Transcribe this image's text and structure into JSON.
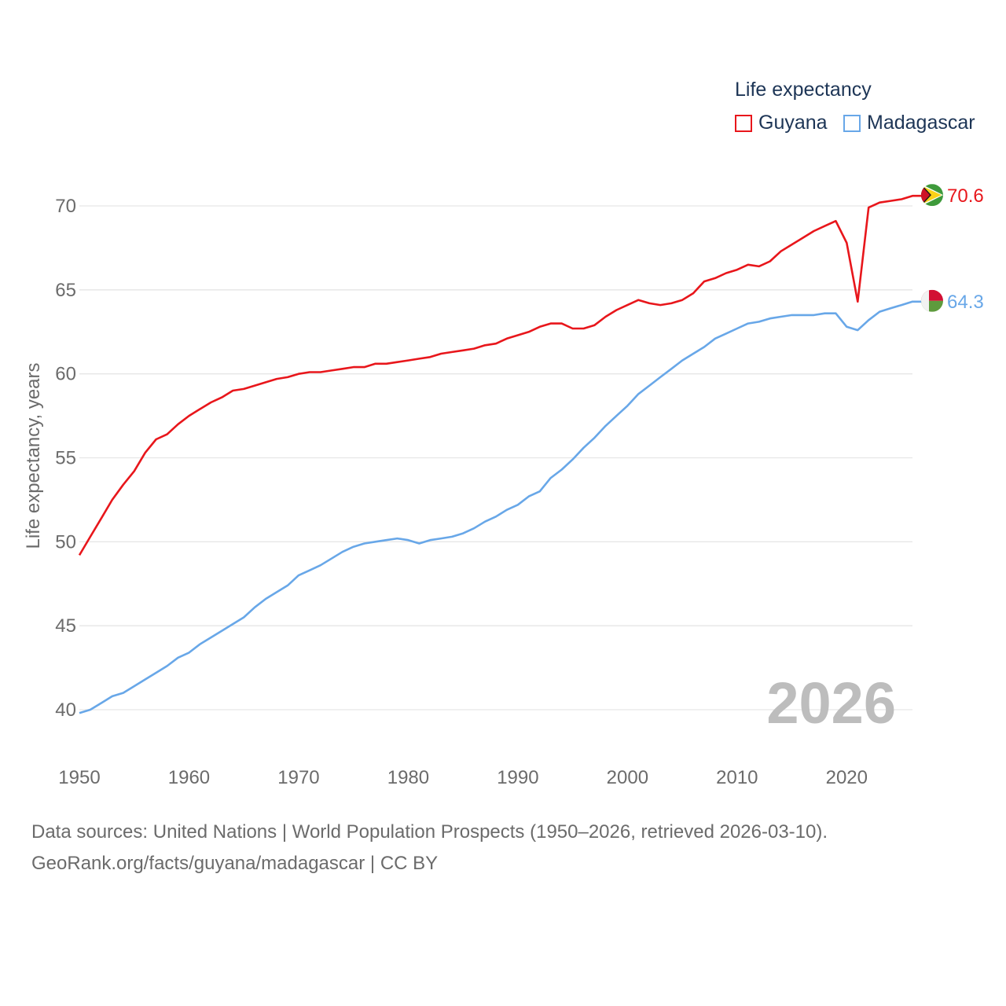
{
  "colors": {
    "guyana": "#e8161b",
    "madagascar": "#68a7e8",
    "grid": "#e6e6e6",
    "axis_text": "#6b6b6b",
    "year_watermark": "#bdbdbd"
  },
  "legend": {
    "title": "Life expectancy",
    "items": [
      {
        "label": "Guyana",
        "icon": "guyana-flag-icon"
      },
      {
        "label": "Madagascar",
        "icon": "madagascar-flag-icon"
      }
    ]
  },
  "year_watermark": "2026",
  "footer": {
    "line1": "Data sources: United Nations | World Population Prospects (1950–2026, retrieved 2026-03-10).",
    "line2": "GeoRank.org/facts/guyana/madagascar | CC BY"
  },
  "chart_data": {
    "type": "line",
    "title": "Life expectancy",
    "xlabel": "",
    "ylabel": "Life expectancy, years",
    "xlim": [
      1950,
      2026
    ],
    "ylim": [
      38,
      72
    ],
    "x_ticks": [
      1950,
      1960,
      1970,
      1980,
      1990,
      2000,
      2010,
      2020
    ],
    "y_ticks": [
      40,
      45,
      50,
      55,
      60,
      65,
      70
    ],
    "grid": true,
    "legend_position": "top-right",
    "x": [
      1950,
      1951,
      1952,
      1953,
      1954,
      1955,
      1956,
      1957,
      1958,
      1959,
      1960,
      1961,
      1962,
      1963,
      1964,
      1965,
      1966,
      1967,
      1968,
      1969,
      1970,
      1971,
      1972,
      1973,
      1974,
      1975,
      1976,
      1977,
      1978,
      1979,
      1980,
      1981,
      1982,
      1983,
      1984,
      1985,
      1986,
      1987,
      1988,
      1989,
      1990,
      1991,
      1992,
      1993,
      1994,
      1995,
      1996,
      1997,
      1998,
      1999,
      2000,
      2001,
      2002,
      2003,
      2004,
      2005,
      2006,
      2007,
      2008,
      2009,
      2010,
      2011,
      2012,
      2013,
      2014,
      2015,
      2016,
      2017,
      2018,
      2019,
      2020,
      2021,
      2022,
      2023,
      2024,
      2025,
      2026
    ],
    "series": [
      {
        "name": "Guyana",
        "end_label": "70.6",
        "values": [
          49.2,
          50.3,
          51.4,
          52.5,
          53.4,
          54.2,
          55.3,
          56.1,
          56.4,
          57.0,
          57.5,
          57.9,
          58.3,
          58.6,
          59.0,
          59.1,
          59.3,
          59.5,
          59.7,
          59.8,
          60.0,
          60.1,
          60.1,
          60.2,
          60.3,
          60.4,
          60.4,
          60.6,
          60.6,
          60.7,
          60.8,
          60.9,
          61.0,
          61.2,
          61.3,
          61.4,
          61.5,
          61.7,
          61.8,
          62.1,
          62.3,
          62.5,
          62.8,
          63.0,
          63.0,
          62.7,
          62.7,
          62.9,
          63.4,
          63.8,
          64.1,
          64.4,
          64.2,
          64.1,
          64.2,
          64.4,
          64.8,
          65.5,
          65.7,
          66.0,
          66.2,
          66.5,
          66.4,
          66.7,
          67.3,
          67.7,
          68.1,
          68.5,
          68.8,
          69.1,
          67.8,
          64.3,
          69.9,
          70.2,
          70.3,
          70.4,
          70.6
        ]
      },
      {
        "name": "Madagascar",
        "end_label": "64.3",
        "values": [
          39.8,
          40.0,
          40.4,
          40.8,
          41.0,
          41.4,
          41.8,
          42.2,
          42.6,
          43.1,
          43.4,
          43.9,
          44.3,
          44.7,
          45.1,
          45.5,
          46.1,
          46.6,
          47.0,
          47.4,
          48.0,
          48.3,
          48.6,
          49.0,
          49.4,
          49.7,
          49.9,
          50.0,
          50.1,
          50.2,
          50.1,
          49.9,
          50.1,
          50.2,
          50.3,
          50.5,
          50.8,
          51.2,
          51.5,
          51.9,
          52.2,
          52.7,
          53.0,
          53.8,
          54.3,
          54.9,
          55.6,
          56.2,
          56.9,
          57.5,
          58.1,
          58.8,
          59.3,
          59.8,
          60.3,
          60.8,
          61.2,
          61.6,
          62.1,
          62.4,
          62.7,
          63.0,
          63.1,
          63.3,
          63.4,
          63.5,
          63.5,
          63.5,
          63.6,
          63.6,
          62.8,
          62.6,
          63.2,
          63.7,
          63.9,
          64.1,
          64.3
        ]
      }
    ]
  }
}
